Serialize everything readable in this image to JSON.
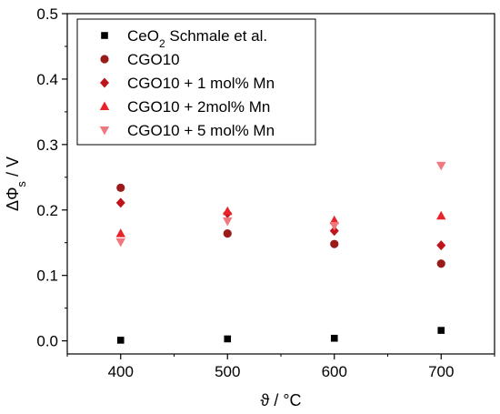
{
  "chart_data": {
    "type": "scatter",
    "xlabel": "ϑ / °C",
    "ylabel": "ΔΦs / V",
    "xlim": [
      350,
      750
    ],
    "ylim": [
      -0.02,
      0.5
    ],
    "xticks": [
      400,
      500,
      600,
      700
    ],
    "yticks": [
      0.0,
      0.1,
      0.2,
      0.3,
      0.4,
      0.5
    ],
    "ytick_labels": [
      "0.0",
      "0.1",
      "0.2",
      "0.3",
      "0.4",
      "0.5"
    ],
    "legend_position": "top-left",
    "series": [
      {
        "name": "CeO2 Schmale et al.",
        "marker": "square",
        "color": "#000000",
        "x": [
          400,
          500,
          600,
          700
        ],
        "y": [
          0.001,
          0.003,
          0.004,
          0.016
        ]
      },
      {
        "name": "CGO10",
        "marker": "circle",
        "color": "#9b1b1b",
        "x": [
          400,
          500,
          600,
          700
        ],
        "y": [
          0.234,
          0.164,
          0.148,
          0.118
        ]
      },
      {
        "name": "CGO10 + 1 mol% Mn",
        "marker": "diamond",
        "color": "#c0141c",
        "x": [
          400,
          500,
          600,
          700
        ],
        "y": [
          0.211,
          0.195,
          0.168,
          0.146
        ]
      },
      {
        "name": "CGO10 + 2mol% Mn",
        "marker": "triangle-up",
        "color": "#e8232a",
        "x": [
          400,
          500,
          600,
          700
        ],
        "y": [
          0.164,
          0.198,
          0.184,
          0.191
        ]
      },
      {
        "name": "CGO10 + 5 mol% Mn",
        "marker": "triangle-down",
        "color": "#f0787e",
        "x": [
          400,
          500,
          600,
          700
        ],
        "y": [
          0.151,
          0.183,
          0.176,
          0.268
        ]
      }
    ]
  }
}
